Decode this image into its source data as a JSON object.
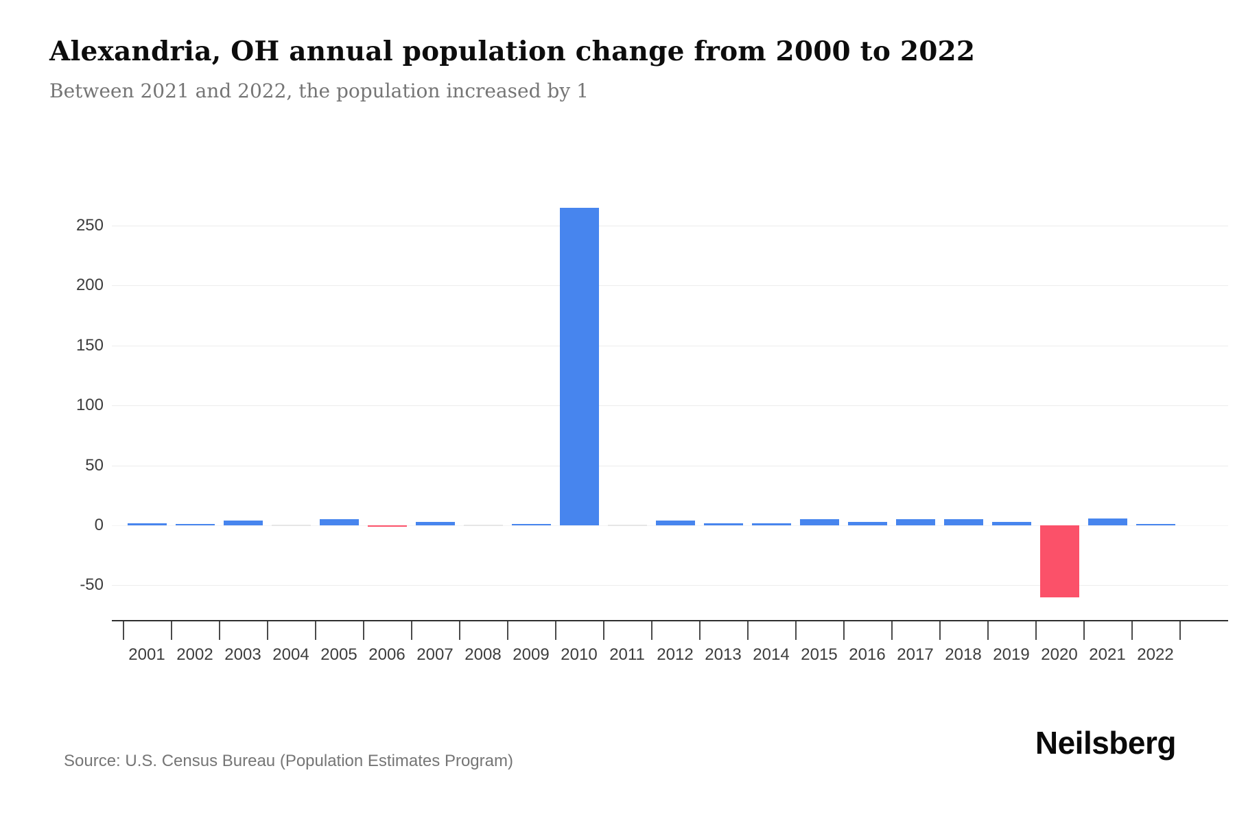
{
  "header": {
    "title": "Alexandria, OH annual population change from 2000 to 2022",
    "subtitle": "Between 2021 and 2022, the population increased by 1"
  },
  "chart_data": {
    "type": "bar",
    "title": "Alexandria, OH annual population change from 2000 to 2022",
    "categories": [
      "2001",
      "2002",
      "2003",
      "2004",
      "2005",
      "2006",
      "2007",
      "2008",
      "2009",
      "2010",
      "2011",
      "2012",
      "2013",
      "2014",
      "2015",
      "2016",
      "2017",
      "2018",
      "2019",
      "2020",
      "2021",
      "2022"
    ],
    "values": [
      2,
      1,
      4,
      0,
      5,
      -1,
      3,
      0,
      1,
      265,
      0,
      4,
      2,
      2,
      5,
      3,
      5,
      5,
      3,
      -60,
      6,
      1
    ],
    "xlabel": "",
    "ylabel": "",
    "ylim": [
      -80,
      280
    ],
    "y_ticks": [
      250,
      200,
      150,
      100,
      50,
      0,
      -50
    ],
    "grid": "horizontal",
    "legend": "none",
    "colors": {
      "positive_bar": "#4785EE",
      "negative_bar": "#FB5169",
      "zero_bar": "#E6E6E6"
    }
  },
  "footer": {
    "source": "Source: U.S. Census Bureau (Population Estimates Program)",
    "brand": "Neilsberg"
  }
}
